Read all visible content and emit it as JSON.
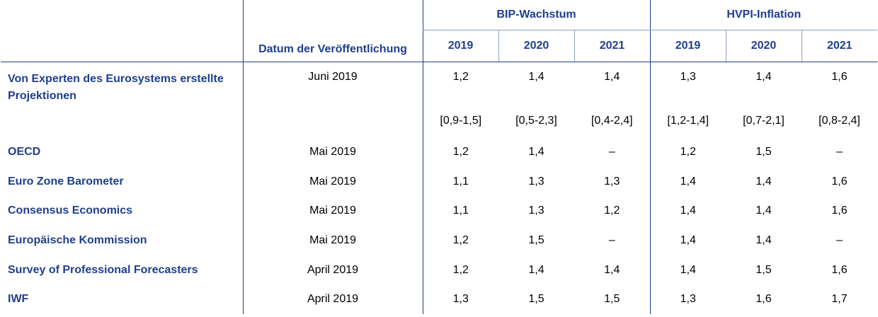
{
  "header": {
    "datum_label": "Datum der Veröffentlichung",
    "bip_label": "BIP-Wachstum",
    "hvpi_label": "HVPI-Inflation",
    "years": [
      "2019",
      "2020",
      "2021",
      "2019",
      "2020",
      "2021"
    ]
  },
  "rows": [
    {
      "label": "Von Experten des Eurosystems erstellte Projektionen",
      "date": "Juni 2019",
      "values": [
        "1,2",
        "1,4",
        "1,4",
        "1,3",
        "1,4",
        "1,6"
      ]
    },
    {
      "label": "",
      "date": "",
      "values": [
        "[0,9-1,5]",
        "[0,5-2,3]",
        "[0,4-2,4]",
        "[1,2-1,4]",
        "[0,7-2,1]",
        "[0,8-2,4]"
      ]
    },
    {
      "label": "OECD",
      "date": "Mai 2019",
      "values": [
        "1,2",
        "1,4",
        "–",
        "1,2",
        "1,5",
        "–"
      ]
    },
    {
      "label": "Euro Zone Barometer",
      "date": "Mai 2019",
      "values": [
        "1,1",
        "1,3",
        "1,3",
        "1,4",
        "1,4",
        "1,6"
      ]
    },
    {
      "label": "Consensus Economics",
      "date": "Mai 2019",
      "values": [
        "1,1",
        "1,3",
        "1,2",
        "1,4",
        "1,4",
        "1,6"
      ]
    },
    {
      "label": "Europäische Kommission",
      "date": "Mai 2019",
      "values": [
        "1,2",
        "1,5",
        "–",
        "1,4",
        "1,4",
        "–"
      ]
    },
    {
      "label": "Survey of Professional Forecasters",
      "date": "April 2019",
      "values": [
        "1,2",
        "1,4",
        "1,4",
        "1,4",
        "1,5",
        "1,6"
      ]
    },
    {
      "label": "IWF",
      "date": "April 2019",
      "values": [
        "1,3",
        "1,5",
        "1,5",
        "1,3",
        "1,6",
        "1,7"
      ]
    }
  ]
}
